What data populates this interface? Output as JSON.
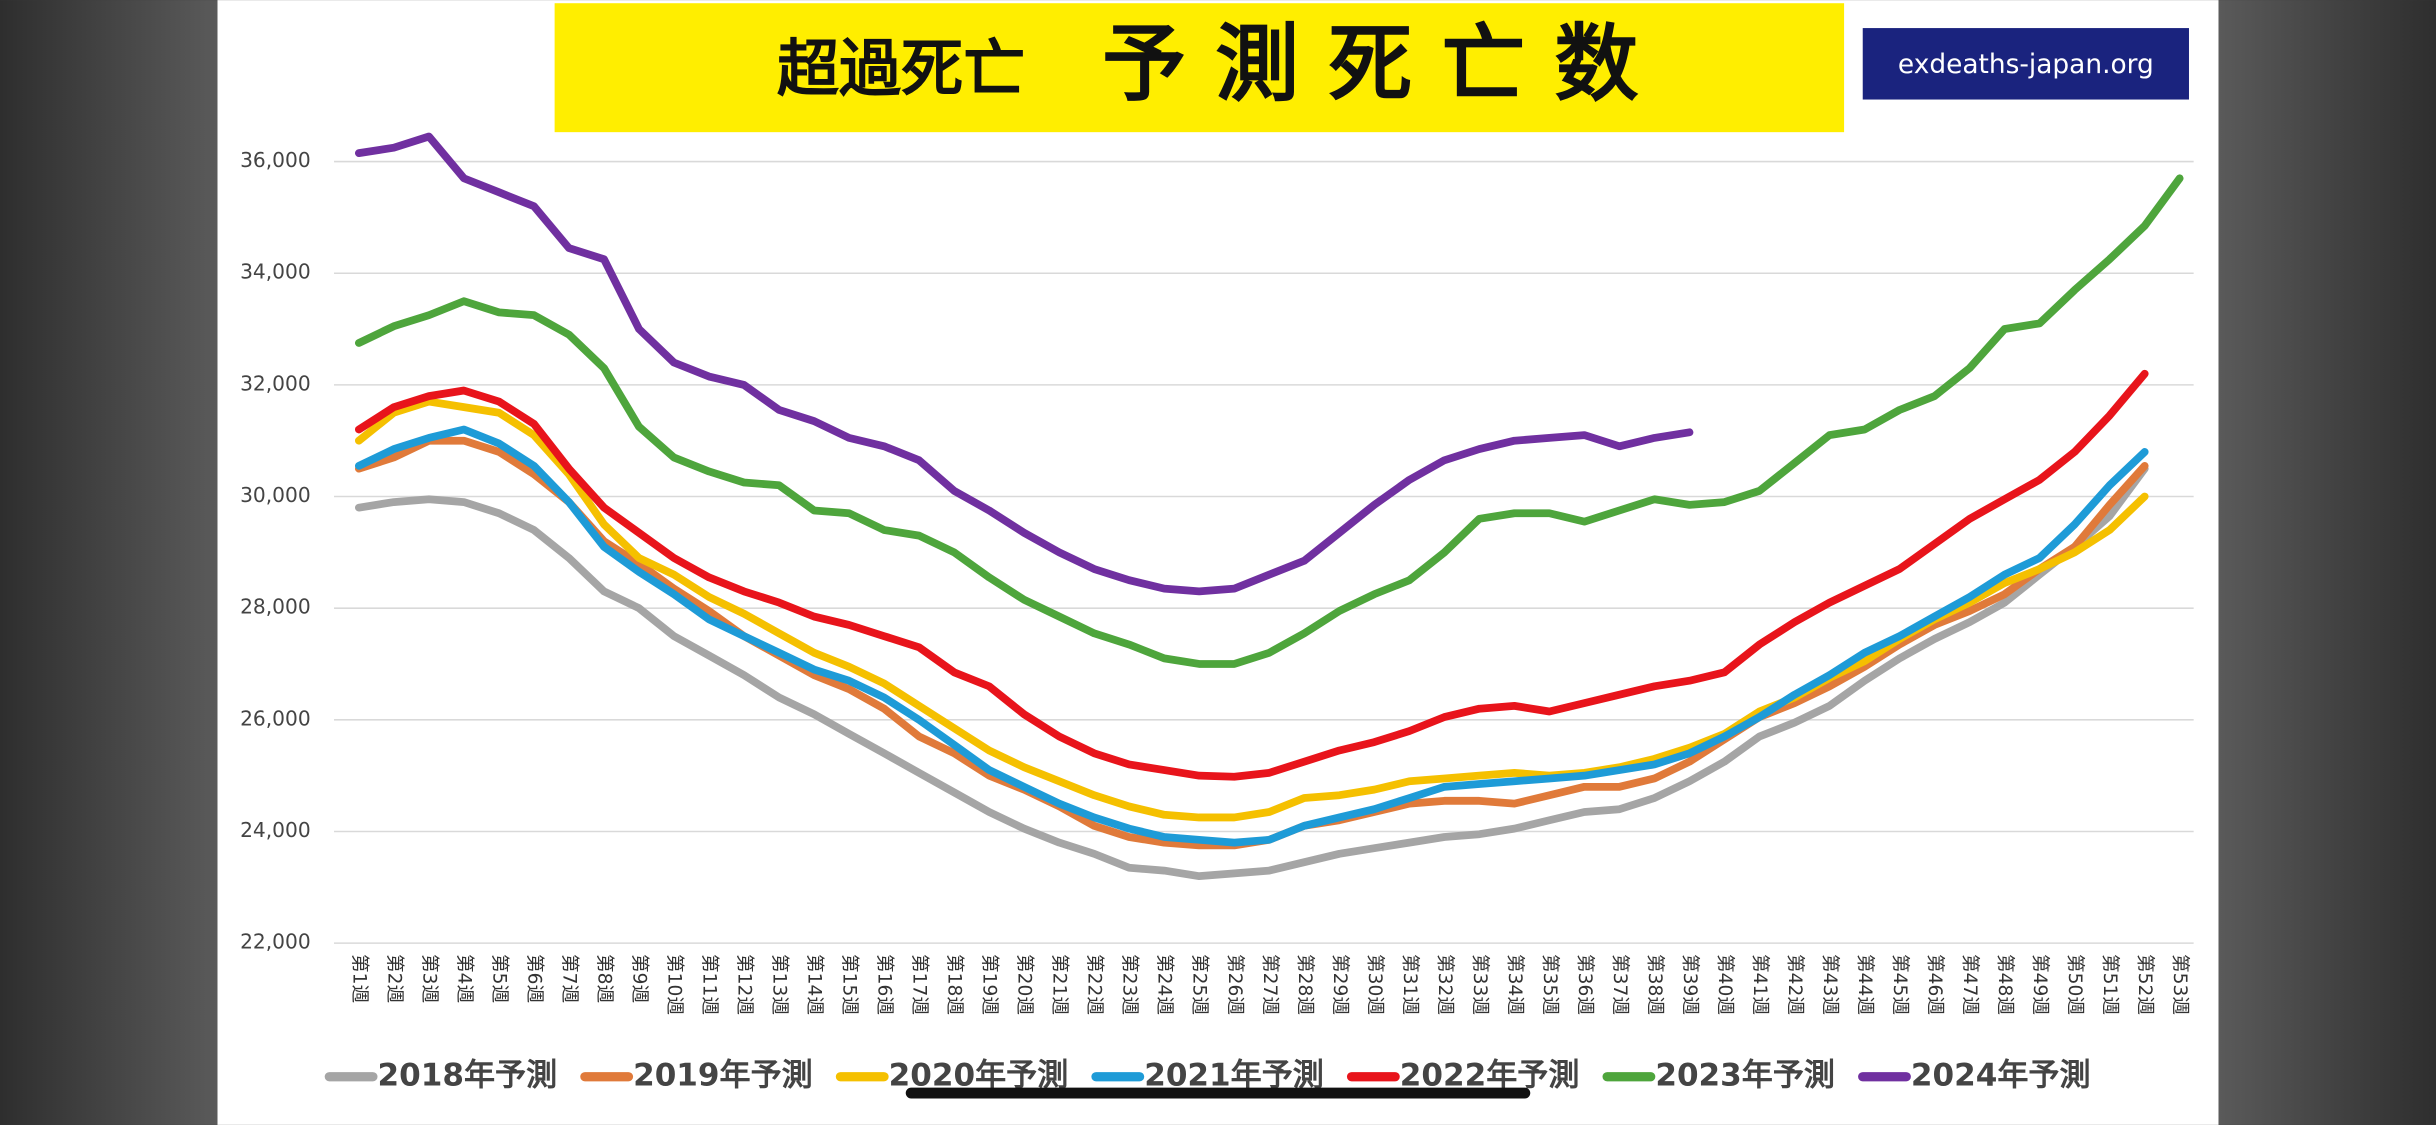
{
  "chart_data": {
    "type": "line",
    "title": "超過死亡",
    "subtitle": "予 測 死 亡 数",
    "source": "exdeaths-japan.org",
    "categories": [
      "第1週",
      "第2週",
      "第3週",
      "第4週",
      "第5週",
      "第6週",
      "第7週",
      "第8週",
      "第9週",
      "第10週",
      "第11週",
      "第12週",
      "第13週",
      "第14週",
      "第15週",
      "第16週",
      "第17週",
      "第18週",
      "第19週",
      "第20週",
      "第21週",
      "第22週",
      "第23週",
      "第24週",
      "第25週",
      "第26週",
      "第27週",
      "第28週",
      "第29週",
      "第30週",
      "第31週",
      "第32週",
      "第33週",
      "第34週",
      "第35週",
      "第36週",
      "第37週",
      "第38週",
      "第39週",
      "第40週",
      "第41週",
      "第42週",
      "第43週",
      "第44週",
      "第45週",
      "第46週",
      "第47週",
      "第48週",
      "第49週",
      "第50週",
      "第51週",
      "第52週",
      "第53週"
    ],
    "ylim": [
      22000,
      37000
    ],
    "yticks": [
      {
        "value": 22000,
        "label": "22,000"
      },
      {
        "value": 24000,
        "label": "24,000"
      },
      {
        "value": 26000,
        "label": "26,000"
      },
      {
        "value": 28000,
        "label": "28,000"
      },
      {
        "value": 30000,
        "label": "30,000"
      },
      {
        "value": 32000,
        "label": "32,000"
      },
      {
        "value": 34000,
        "label": "34,000"
      },
      {
        "value": 36000,
        "label": "36,000"
      }
    ],
    "grid": true,
    "legend": "bottom",
    "series": [
      {
        "name": "2018年予測",
        "color": "#a5a5a5",
        "values": [
          29800,
          29900,
          29950,
          29900,
          29700,
          29400,
          28900,
          28300,
          28000,
          27500,
          27150,
          26800,
          26400,
          26100,
          25750,
          25400,
          25050,
          24700,
          24350,
          24050,
          23800,
          23600,
          23350,
          23300,
          23200,
          23250,
          23300,
          23450,
          23600,
          23700,
          23800,
          23900,
          23950,
          24050,
          24200,
          24350,
          24400,
          24600,
          24900,
          25250,
          25700,
          25950,
          26250,
          26700,
          27100,
          27450,
          27750,
          28100,
          28600,
          29100,
          29650,
          30500,
          null
        ]
      },
      {
        "name": "2019年予測",
        "color": "#e07a3a",
        "values": [
          30500,
          30700,
          31000,
          31000,
          30800,
          30400,
          29900,
          29200,
          28800,
          28350,
          27950,
          27500,
          27150,
          26800,
          26550,
          26200,
          25700,
          25400,
          25000,
          24750,
          24450,
          24100,
          23900,
          23800,
          23750,
          23750,
          23850,
          24100,
          24200,
          24350,
          24500,
          24550,
          24550,
          24500,
          24650,
          24800,
          24800,
          24950,
          25250,
          25650,
          26050,
          26300,
          26600,
          26950,
          27350,
          27700,
          27950,
          28250,
          28700,
          29100,
          29850,
          30550,
          null
        ]
      },
      {
        "name": "2020年予測",
        "color": "#f5c000",
        "values": [
          31000,
          31500,
          31700,
          31600,
          31500,
          31100,
          30400,
          29500,
          28900,
          28600,
          28200,
          27900,
          27550,
          27200,
          26950,
          26650,
          26250,
          25850,
          25450,
          25150,
          24900,
          24650,
          24450,
          24300,
          24250,
          24250,
          24350,
          24600,
          24650,
          24750,
          24900,
          24950,
          25000,
          25050,
          25000,
          25050,
          25150,
          25300,
          25500,
          25750,
          26150,
          26400,
          26750,
          27050,
          27450,
          27800,
          28100,
          28450,
          28700,
          29000,
          29400,
          30000,
          null
        ]
      },
      {
        "name": "2021年予測",
        "color": "#1e9bd7",
        "values": [
          30550,
          30850,
          31050,
          31200,
          30950,
          30550,
          29900,
          29100,
          28650,
          28250,
          27800,
          27500,
          27200,
          26900,
          26700,
          26400,
          26000,
          25550,
          25100,
          24800,
          24500,
          24250,
          24050,
          23900,
          23850,
          23800,
          23850,
          24100,
          24250,
          24400,
          24600,
          24800,
          24850,
          24900,
          24950,
          25000,
          25100,
          25200,
          25400,
          25700,
          26050,
          26450,
          26800,
          27200,
          27500,
          27850,
          28200,
          28600,
          28900,
          29500,
          30200,
          30800,
          null
        ]
      },
      {
        "name": "2022年予測",
        "color": "#e8141b",
        "values": [
          31200,
          31600,
          31800,
          31900,
          31700,
          31300,
          30500,
          29800,
          29350,
          28900,
          28550,
          28300,
          28100,
          27850,
          27700,
          27500,
          27300,
          26850,
          26600,
          26100,
          25700,
          25400,
          25200,
          25100,
          25000,
          24980,
          25050,
          25250,
          25450,
          25600,
          25800,
          26050,
          26200,
          26250,
          26150,
          26300,
          26450,
          26600,
          26700,
          26850,
          27350,
          27750,
          28100,
          28400,
          28700,
          29150,
          29600,
          29950,
          30300,
          30800,
          31450,
          32200,
          null
        ]
      },
      {
        "name": "2023年予測",
        "color": "#4ea53c",
        "values": [
          32750,
          33050,
          33250,
          33500,
          33300,
          33250,
          32900,
          32300,
          31250,
          30700,
          30450,
          30250,
          30200,
          29750,
          29700,
          29400,
          29300,
          29000,
          28550,
          28150,
          27850,
          27550,
          27350,
          27100,
          27000,
          27000,
          27200,
          27550,
          27950,
          28250,
          28500,
          29000,
          29600,
          29700,
          29700,
          29550,
          29750,
          29950,
          29850,
          29900,
          30100,
          30600,
          31100,
          31200,
          31550,
          31800,
          32300,
          33000,
          33100,
          33700,
          34250,
          34850,
          35700
        ]
      },
      {
        "name": "2024年予測",
        "color": "#7030a0",
        "values": [
          36150,
          36250,
          36450,
          35700,
          35450,
          35200,
          34450,
          34250,
          33000,
          32400,
          32150,
          32000,
          31550,
          31350,
          31050,
          30900,
          30650,
          30100,
          29750,
          29350,
          29000,
          28700,
          28500,
          28350,
          28300,
          28350,
          28600,
          28850,
          29350,
          29850,
          30300,
          30650,
          30850,
          31000,
          31050,
          31100,
          30900,
          31050,
          31150,
          null,
          null,
          null,
          null,
          null,
          null,
          null,
          null,
          null,
          null,
          null,
          null,
          null,
          null
        ]
      }
    ]
  }
}
